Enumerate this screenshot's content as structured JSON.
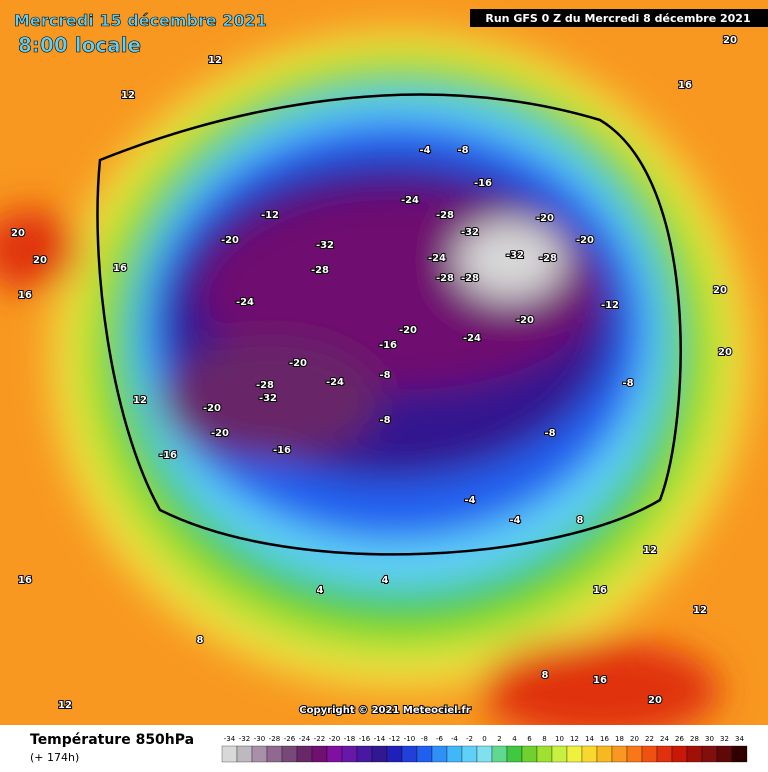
{
  "header": {
    "date": "Mercredi 15 décembre 2021",
    "time": "8:00 locale",
    "run": "Run GFS 0 Z du Mercredi 8 décembre 2021"
  },
  "map": {
    "labels": [
      "20",
      "20",
      "12",
      "12",
      "12",
      "16",
      "12",
      "-12",
      "-20",
      "-24",
      "-32",
      "-28",
      "-24",
      "-28",
      "-32",
      "-32",
      "-28",
      "-20",
      "-20",
      "-24",
      "-28",
      "-28",
      "-20",
      "-24",
      "-20",
      "-16",
      "-8",
      "-24",
      "-20",
      "-28",
      "-32",
      "-20",
      "-20",
      "-16",
      "-16",
      "-8",
      "-8",
      "-12",
      "-8",
      "8",
      "12",
      "20",
      "20",
      "16",
      "20",
      "12",
      "-4",
      "-4",
      "4",
      "-4",
      "-8",
      "-16",
      "16",
      "20",
      "16",
      "16",
      "8",
      "4",
      "16",
      "8"
    ],
    "copyright": "Copyright © 2021 Meteociel.fr"
  },
  "legend": {
    "title": "Température 850hPa",
    "lead": "(+ 174h)",
    "scale": [
      "-34",
      "-32",
      "-30",
      "-28",
      "-26",
      "-24",
      "-22",
      "-20",
      "-18",
      "-16",
      "-14",
      "-12",
      "-10",
      "-8",
      "-6",
      "-4",
      "-2",
      "0",
      "2",
      "4",
      "6",
      "8",
      "10",
      "12",
      "14",
      "16",
      "18",
      "20",
      "22",
      "24",
      "26",
      "28",
      "30",
      "32",
      "34"
    ],
    "colors": [
      "#d8d8d8",
      "#c0b8c0",
      "#a890a8",
      "#906890",
      "#784878",
      "#682868",
      "#701070",
      "#8010a0",
      "#6818a8",
      "#4818a0",
      "#301890",
      "#2020b8",
      "#2040d8",
      "#2060f0",
      "#3090f8",
      "#40b8f8",
      "#60d0f8",
      "#80e0f0",
      "#60d890",
      "#40c840",
      "#70d030",
      "#a0e030",
      "#c8f040",
      "#f0f040",
      "#f8d830",
      "#f8b820",
      "#f89820",
      "#f87818",
      "#f05010",
      "#e03010",
      "#c81808",
      "#a01008",
      "#801010",
      "#600808",
      "#300000"
    ]
  }
}
